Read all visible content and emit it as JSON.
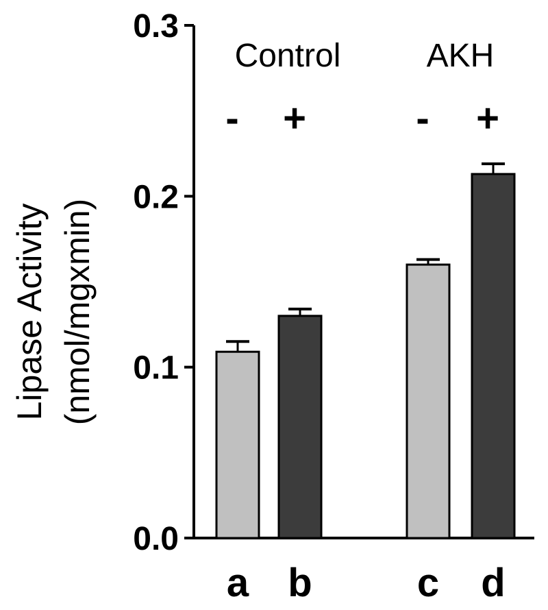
{
  "chart_data": {
    "type": "bar",
    "ylabel": "Lipase Activity",
    "ylabel_units": "(nmol/mgxmin)",
    "ylim": [
      0,
      0.3
    ],
    "yticks": [
      "0.0",
      "0.1",
      "0.2",
      "0.3"
    ],
    "grid": false,
    "categories": [
      "a",
      "b",
      "c",
      "d"
    ],
    "values": [
      0.109,
      0.13,
      0.16,
      0.213
    ],
    "errors": [
      0.006,
      0.004,
      0.003,
      0.006
    ],
    "treatment": [
      "-",
      "+",
      "-",
      "+"
    ],
    "groups": [
      {
        "name": "Control",
        "categories": [
          "a",
          "b"
        ]
      },
      {
        "name": "AKH",
        "categories": [
          "c",
          "d"
        ]
      }
    ],
    "colors": {
      "minus": "#c0c0c0",
      "plus": "#3c3c3c",
      "axis": "#000000"
    }
  }
}
